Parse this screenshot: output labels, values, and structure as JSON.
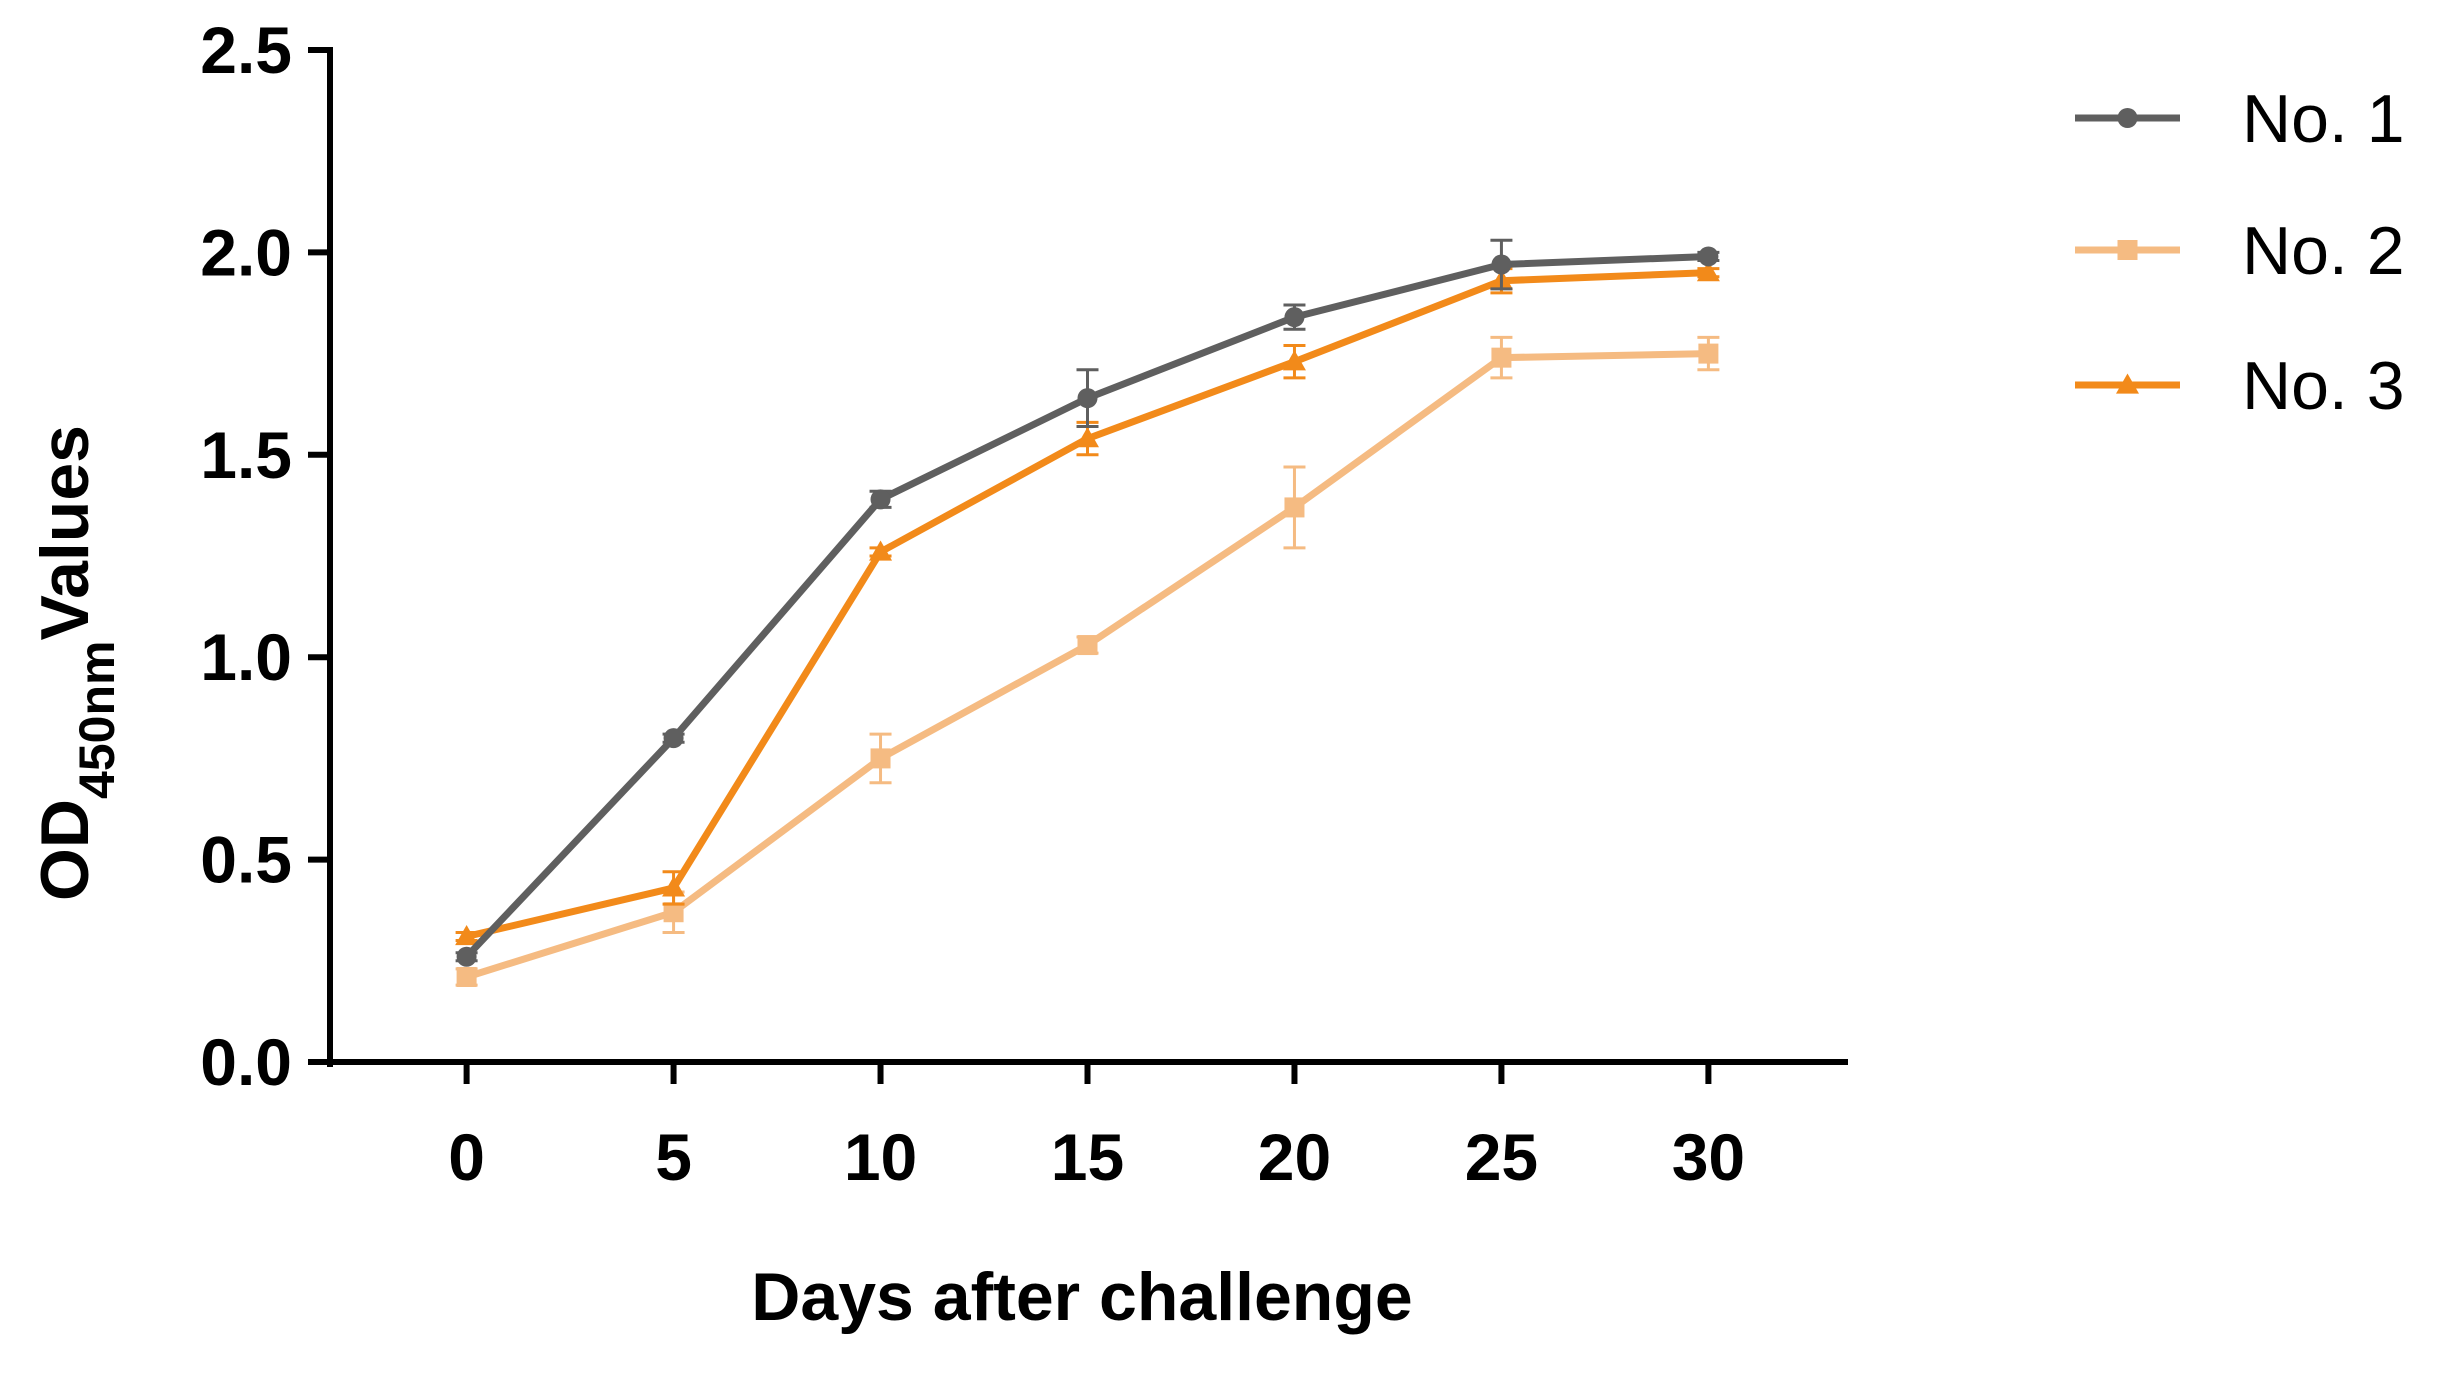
{
  "chart_data": {
    "type": "line",
    "xlabel": "Days after challenge",
    "ylabel": {
      "main": "OD",
      "subscript": "450nm",
      "suffix": "Values"
    },
    "x": [
      0,
      5,
      10,
      15,
      20,
      25,
      30
    ],
    "xlim": [
      -3.3,
      33.3
    ],
    "ylim": [
      0,
      2.5
    ],
    "x_ticks": [
      "0",
      "5",
      "10",
      "15",
      "20",
      "25",
      "30"
    ],
    "y_ticks": [
      "0.0",
      "0.5",
      "1.0",
      "1.5",
      "2.0",
      "2.5"
    ],
    "y_tick_values": [
      0,
      0.5,
      1.0,
      1.5,
      2.0,
      2.5
    ],
    "grid": false,
    "legend_position": "top-right",
    "series": [
      {
        "name": "No. 1",
        "color": "#5f5f5f",
        "marker": "circle",
        "values": [
          0.26,
          0.8,
          1.39,
          1.64,
          1.84,
          1.97,
          1.99
        ],
        "errors": [
          0.01,
          0.01,
          0.02,
          0.07,
          0.03,
          0.06,
          0.01
        ]
      },
      {
        "name": "No. 2",
        "color": "#f5bb82",
        "marker": "square",
        "values": [
          0.21,
          0.37,
          0.75,
          1.03,
          1.37,
          1.74,
          1.75
        ],
        "errors": [
          0.02,
          0.05,
          0.06,
          0.02,
          0.1,
          0.05,
          0.04
        ]
      },
      {
        "name": "No. 3",
        "color": "#f28a1a",
        "marker": "triangle",
        "values": [
          0.31,
          0.43,
          1.26,
          1.54,
          1.73,
          1.93,
          1.95
        ],
        "errors": [
          0.01,
          0.04,
          0.01,
          0.04,
          0.04,
          0.03,
          0.01
        ]
      }
    ]
  }
}
